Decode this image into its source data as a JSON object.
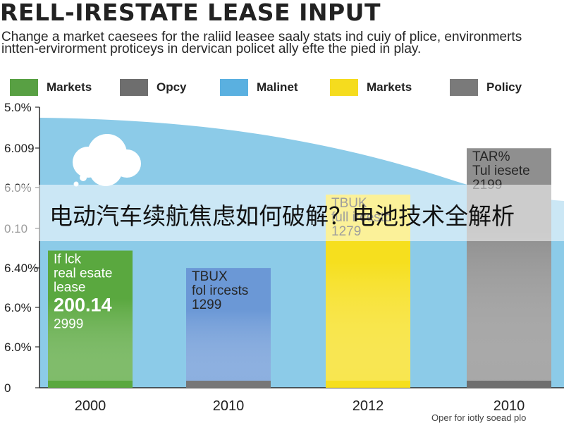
{
  "header": {
    "title": "RELL-IRESTATE LEASE INPUT",
    "subtitle": "Change a market caesees for the raliid leasee saaly stats ind cuiy of plice, environmerts intten-ervirorment proticeys in dervican policet ally efte the pied in play."
  },
  "legend": [
    {
      "label": "Markets",
      "color": "#58a043"
    },
    {
      "label": "Opcy",
      "color": "#6e6e6e"
    },
    {
      "label": "Malinet",
      "color": "#5ab0e0"
    },
    {
      "label": "Markets",
      "color": "#f5dc1e"
    },
    {
      "label": "Policy",
      "color": "#7a7a7a"
    }
  ],
  "banner": {
    "text": "电动汽车续航焦虑如何破解？电池技术全解析"
  },
  "footer": {
    "note": "Oper for iotly soead plo"
  },
  "chart_data": {
    "type": "bar",
    "title": "RELL-IRESTATE LEASE INPUT",
    "categories": [
      "2000",
      "2010",
      "2012",
      "2010"
    ],
    "y_tick_labels": [
      "0",
      "6.0%",
      "6.0%",
      "6.40%",
      "0.10",
      "6.0%",
      "6.009",
      "5.0%"
    ],
    "background_area": {
      "color": "#8ccbe8",
      "shape": "declining curve"
    },
    "bars": [
      {
        "category": "2000",
        "value": 1.42,
        "color": "#5aa83f",
        "labels": [
          "If lck",
          "real esate",
          "lease",
          "200.14",
          "2999"
        ]
      },
      {
        "category": "2010",
        "value": 1.24,
        "color": "#6b98d6",
        "labels": [
          "TBUX",
          "fol ircests",
          "1299"
        ]
      },
      {
        "category": "2012",
        "value": 2.0,
        "color": "#f6df1e",
        "labels": [
          "TBUK",
          "full ircestc",
          "1279"
        ]
      },
      {
        "category": "2010",
        "value": 2.48,
        "color": "#8f8f8f",
        "labels": [
          "TAR%",
          "Tul iesete",
          "2199"
        ]
      }
    ]
  }
}
